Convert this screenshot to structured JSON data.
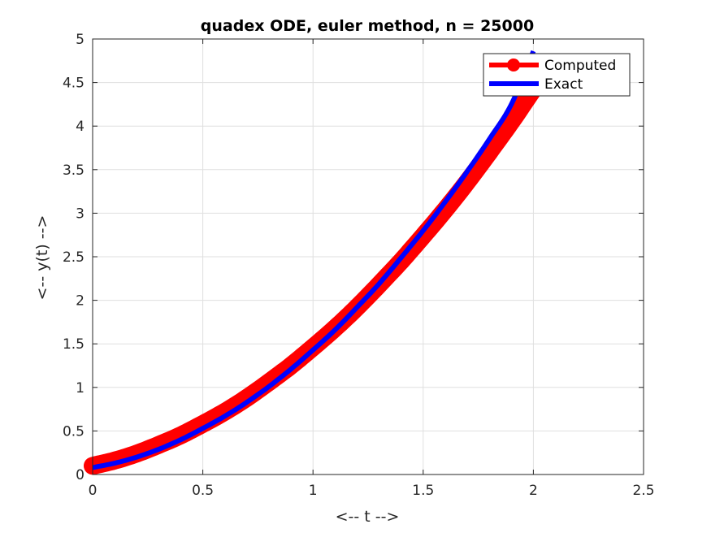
{
  "chart_data": {
    "type": "line",
    "title": "quadex ODE, euler method, n = 25000",
    "xlabel": "<-- t -->",
    "ylabel": "<-- y(t) -->",
    "xlim": [
      0,
      2.5
    ],
    "ylim": [
      0,
      5
    ],
    "x_ticks": [
      0,
      0.5,
      1,
      1.5,
      2,
      2.5
    ],
    "y_ticks": [
      0,
      0.5,
      1,
      1.5,
      2,
      2.5,
      3,
      3.5,
      4,
      4.5,
      5
    ],
    "x_tick_labels": [
      "0",
      "0.5",
      "1",
      "1.5",
      "2",
      "2.5"
    ],
    "y_tick_labels": [
      "0",
      "0.5",
      "1",
      "1.5",
      "2",
      "2.5",
      "3",
      "3.5",
      "4",
      "4.5",
      "5"
    ],
    "grid": true,
    "legend_position": "top-right",
    "series": [
      {
        "name": "Computed",
        "color": "#ff0000",
        "marker": "asterisk",
        "x": [
          0,
          0.1,
          0.2,
          0.3,
          0.4,
          0.5,
          0.6,
          0.7,
          0.8,
          0.9,
          1.0,
          1.1,
          1.2,
          1.3,
          1.4,
          1.5,
          1.6,
          1.7,
          1.8,
          1.9,
          2.0
        ],
        "y": [
          0.1,
          0.16,
          0.24,
          0.34,
          0.45,
          0.58,
          0.72,
          0.88,
          1.06,
          1.25,
          1.46,
          1.68,
          1.92,
          2.18,
          2.45,
          2.74,
          3.04,
          3.36,
          3.7,
          4.05,
          4.42
        ]
      },
      {
        "name": "Exact",
        "color": "#0000ff",
        "marker": "none",
        "x": [
          0,
          0.1,
          0.2,
          0.3,
          0.4,
          0.5,
          0.6,
          0.7,
          0.8,
          0.9,
          1.0,
          1.1,
          1.2,
          1.3,
          1.4,
          1.5,
          1.6,
          1.7,
          1.8,
          1.9,
          2.0
        ],
        "y": [
          0.08,
          0.13,
          0.2,
          0.29,
          0.4,
          0.53,
          0.67,
          0.83,
          1.01,
          1.21,
          1.43,
          1.66,
          1.92,
          2.19,
          2.49,
          2.8,
          3.13,
          3.48,
          3.85,
          4.25,
          4.86
        ]
      }
    ]
  }
}
